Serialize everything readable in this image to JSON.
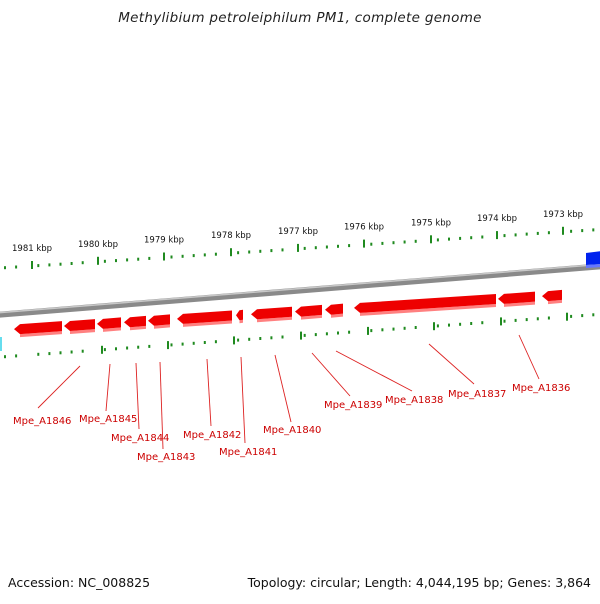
{
  "title": "Methylibium petroleiphilum PM1, complete genome",
  "footer": {
    "accession": "Accession: NC_008825",
    "summary": "Topology: circular; Length: 4,044,195 bp; Genes: 3,864"
  },
  "colors": {
    "backbone": "#8a8a8a",
    "ticks": "#1f8a1f",
    "gene_reverse": "#ee0000",
    "gene_reverse_shadow": "#ff8080",
    "gene_forward": "#0022ee",
    "label_text": "#cc0000",
    "callout_line": "#dd2222",
    "partial_feature": "#66ddee"
  },
  "scale": {
    "ticks": [
      {
        "label": "1981 kbp",
        "kbp": 1981
      },
      {
        "label": "1980 kbp",
        "kbp": 1980
      },
      {
        "label": "1979 kbp",
        "kbp": 1979
      },
      {
        "label": "1978 kbp",
        "kbp": 1978
      },
      {
        "label": "1977 kbp",
        "kbp": 1977
      },
      {
        "label": "1976 kbp",
        "kbp": 1976
      },
      {
        "label": "1975 kbp",
        "kbp": 1975
      },
      {
        "label": "1974 kbp",
        "kbp": 1974
      },
      {
        "label": "1973 kbp",
        "kbp": 1973
      }
    ]
  },
  "genes": [
    {
      "name": "Mpe_A1846",
      "strand": "reverse"
    },
    {
      "name": "Mpe_A1845",
      "strand": "reverse"
    },
    {
      "name": "Mpe_A1844",
      "strand": "reverse"
    },
    {
      "name": "Mpe_A1843",
      "strand": "reverse"
    },
    {
      "name": "Mpe_A1842",
      "strand": "reverse"
    },
    {
      "name": "Mpe_A1841",
      "strand": "reverse"
    },
    {
      "name": "Mpe_A1840",
      "strand": "reverse"
    },
    {
      "name": "Mpe_A1839",
      "strand": "reverse"
    },
    {
      "name": "Mpe_A1838",
      "strand": "reverse"
    },
    {
      "name": "Mpe_A1837",
      "strand": "reverse"
    },
    {
      "name": "Mpe_A1836",
      "strand": "reverse"
    }
  ]
}
